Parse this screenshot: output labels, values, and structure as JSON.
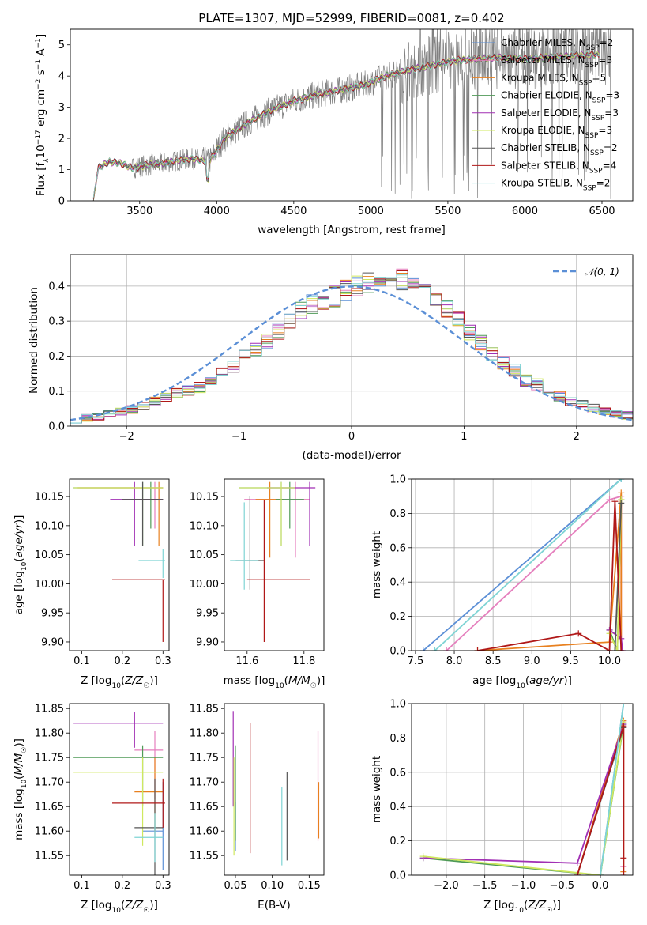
{
  "chart_data": [
    {
      "type": "line",
      "panel": "spectrum",
      "title": "PLATE=1307, MJD=52999, FIBERID=0081, z=0.402",
      "xlabel": "wavelength [Angstrom, rest frame]",
      "ylabel": "Flux [fλ10⁻¹⁷ erg cm⁻² s⁻¹ A⁻¹]",
      "xlim": [
        3050,
        6700
      ],
      "ylim": [
        0,
        5.5
      ],
      "xticks": [
        3500,
        4000,
        4500,
        5000,
        5500,
        6000,
        6500
      ],
      "yticks": [
        0,
        1,
        2,
        3,
        4,
        5
      ],
      "legend_position": "top-right",
      "legend": [
        {
          "label": "Chabrier MILES, N_SSP=2",
          "color": "#5b8fd6"
        },
        {
          "label": "Salpeter MILES, N_SSP=3",
          "color": "#e57fbd"
        },
        {
          "label": "Kroupa MILES, N_SSP=5",
          "color": "#e8801f"
        },
        {
          "label": "Chabrier ELODIE, N_SSP=3",
          "color": "#4f9a57"
        },
        {
          "label": "Salpeter ELODIE, N_SSP=3",
          "color": "#a12fb4"
        },
        {
          "label": "Kroupa ELODIE, N_SSP=3",
          "color": "#cfe85e"
        },
        {
          "label": "Chabrier STELIB, N_SSP=2",
          "color": "#555555"
        },
        {
          "label": "Salpeter STELIB, N_SSP=4",
          "color": "#b01818"
        },
        {
          "label": "Kroupa STELIB, N_SSP=2",
          "color": "#7fd4d4"
        }
      ],
      "data_color": "#808080",
      "continuum": {
        "x": [
          3200,
          3230,
          3300,
          3380,
          3450,
          3550,
          3650,
          3750,
          3850,
          3950,
          4050,
          4200,
          4350,
          4500,
          4650,
          4800,
          4950,
          5100,
          5250,
          5400,
          5550,
          5700,
          5850,
          6000,
          6150,
          6300,
          6500
        ],
        "y": [
          0,
          1.05,
          1.25,
          1.2,
          1.05,
          1.15,
          1.2,
          1.3,
          1.35,
          1.25,
          2.0,
          2.5,
          2.9,
          3.2,
          3.4,
          3.55,
          3.7,
          4.0,
          4.2,
          4.35,
          4.5,
          4.55,
          4.6,
          4.55,
          4.6,
          4.65,
          4.7
        ]
      }
    },
    {
      "type": "histogram",
      "panel": "residuals",
      "xlabel": "(data-model)/error",
      "ylabel": "Normed distribution",
      "xlim": [
        -2.5,
        2.5
      ],
      "ylim": [
        0,
        0.49
      ],
      "xticks": [
        -2,
        -1,
        0,
        1,
        2
      ],
      "yticks": [
        0,
        0.1,
        0.2,
        0.3,
        0.4
      ],
      "grid": true,
      "legend_position": "top-right",
      "legend": [
        {
          "label": "𝒩(0, 1)",
          "color": "#5b8fd6",
          "style": "dashed"
        }
      ],
      "bin_width": 0.1,
      "base_hist": [
        0.02,
        0.022,
        0.028,
        0.033,
        0.04,
        0.047,
        0.058,
        0.07,
        0.083,
        0.093,
        0.1,
        0.11,
        0.128,
        0.15,
        0.17,
        0.2,
        0.22,
        0.24,
        0.27,
        0.3,
        0.33,
        0.35,
        0.36,
        0.37,
        0.39,
        0.4,
        0.41,
        0.4,
        0.42,
        0.42,
        0.4,
        0.38,
        0.35,
        0.33,
        0.3,
        0.27,
        0.24,
        0.21,
        0.18,
        0.16,
        0.13,
        0.12,
        0.1,
        0.085,
        0.07,
        0.06,
        0.05,
        0.04,
        0.035,
        0.03
      ]
    },
    {
      "type": "errorbar",
      "panel": "age_vs_Z",
      "xlabel": "Z [log₁₀(Z/Z☉)]",
      "ylabel": "age  [log₁₀(age/yr)]",
      "xlim": [
        0.07,
        0.315
      ],
      "ylim": [
        9.885,
        10.18
      ],
      "xticks": [
        0.1,
        0.2,
        0.3
      ],
      "yticks": [
        9.9,
        9.95,
        10.0,
        10.05,
        10.1,
        10.15
      ],
      "points": [
        {
          "color": "#5b8fd6",
          "x": 0.25,
          "xerr": [
            0.17,
            0.05
          ],
          "y": 10.165,
          "yerr": [
            0.1,
            0.01
          ]
        },
        {
          "color": "#e57fbd",
          "x": 0.28,
          "xerr": [
            0.05,
            0.02
          ],
          "y": 10.145,
          "yerr": [
            0.05,
            0.03
          ]
        },
        {
          "color": "#e8801f",
          "x": 0.29,
          "xerr": [
            0.2,
            0.01
          ],
          "y": 10.165,
          "yerr": [
            0.1,
            0.01
          ]
        },
        {
          "color": "#4f9a57",
          "x": 0.27,
          "xerr": [
            0.05,
            0.03
          ],
          "y": 10.145,
          "yerr": [
            0.05,
            0.03
          ]
        },
        {
          "color": "#a12fb4",
          "x": 0.23,
          "xerr": [
            0.06,
            0.07
          ],
          "y": 10.145,
          "yerr": [
            0.08,
            0.03
          ]
        },
        {
          "color": "#cfe85e",
          "x": 0.25,
          "xerr": [
            0.17,
            0.05
          ],
          "y": 10.165,
          "yerr": [
            0.1,
            0.01
          ]
        },
        {
          "color": "#555555",
          "x": 0.25,
          "xerr": [
            0.05,
            0.05
          ],
          "y": 10.145,
          "yerr": [
            0.08,
            0.03
          ]
        },
        {
          "color": "#b01818",
          "x": 0.3,
          "xerr": [
            0.125,
            0.005
          ],
          "y": 10.007,
          "yerr": [
            0.107,
            0.0
          ]
        },
        {
          "color": "#7fd4d4",
          "x": 0.3,
          "xerr": [
            0.06,
            0.005
          ],
          "y": 10.04,
          "yerr": [
            0.03,
            0.02
          ]
        }
      ]
    },
    {
      "type": "errorbar",
      "panel": "age_vs_mass",
      "xlabel": "mass [log₁₀(M/M☉)]",
      "xlim": [
        11.52,
        11.87
      ],
      "ylim": [
        9.885,
        10.18
      ],
      "xticks": [
        11.6,
        11.8
      ],
      "yticks": [
        9.9,
        9.95,
        10.0,
        10.05,
        10.1,
        10.15
      ],
      "points": [
        {
          "color": "#5b8fd6",
          "x": 11.72,
          "xerr": [
            0.15,
            0.05
          ],
          "y": 10.165,
          "yerr": [
            0.1,
            0.01
          ]
        },
        {
          "color": "#e57fbd",
          "x": 11.77,
          "xerr": [
            0.18,
            0.05
          ],
          "y": 10.145,
          "yerr": [
            0.1,
            0.03
          ]
        },
        {
          "color": "#e8801f",
          "x": 11.68,
          "xerr": [
            0.05,
            0.05
          ],
          "y": 10.145,
          "yerr": [
            0.1,
            0.03
          ]
        },
        {
          "color": "#4f9a57",
          "x": 11.75,
          "xerr": [
            0.05,
            0.05
          ],
          "y": 10.145,
          "yerr": [
            0.05,
            0.03
          ]
        },
        {
          "color": "#a12fb4",
          "x": 11.82,
          "xerr": [
            0.15,
            0.02
          ],
          "y": 10.165,
          "yerr": [
            0.1,
            0.01
          ]
        },
        {
          "color": "#cfe85e",
          "x": 11.72,
          "xerr": [
            0.15,
            0.05
          ],
          "y": 10.165,
          "yerr": [
            0.1,
            0.01
          ]
        },
        {
          "color": "#555555",
          "x": 11.61,
          "xerr": [
            0.05,
            0.05
          ],
          "y": 10.04,
          "yerr": [
            0.05,
            0.11
          ]
        },
        {
          "color": "#b01818",
          "x": 11.66,
          "xerr": [
            0.06,
            0.16
          ],
          "y": 10.007,
          "yerr": [
            0.107,
            0.137
          ]
        },
        {
          "color": "#7fd4d4",
          "x": 11.59,
          "xerr": [
            0.05,
            0.05
          ],
          "y": 10.04,
          "yerr": [
            0.05,
            0.1
          ]
        }
      ]
    },
    {
      "type": "line",
      "panel": "mass_weight_vs_age",
      "xlabel": "age  [log₁₀(age/yr)]",
      "ylabel": "mass weight",
      "xlim": [
        7.45,
        10.3
      ],
      "ylim": [
        0,
        1.0
      ],
      "xticks": [
        7.5,
        8.0,
        8.5,
        9.0,
        9.5,
        10.0
      ],
      "yticks": [
        0.0,
        0.2,
        0.4,
        0.6,
        0.8,
        1.0
      ],
      "grid": true,
      "series": [
        {
          "color": "#5b8fd6",
          "x": [
            7.6,
            10.15
          ],
          "y": [
            0.0,
            1.0
          ]
        },
        {
          "color": "#e57fbd",
          "x": [
            7.9,
            10.0,
            10.15,
            10.15
          ],
          "y": [
            0.0,
            0.88,
            0.9,
            0.0
          ]
        },
        {
          "color": "#e8801f",
          "x": [
            8.3,
            10.0,
            10.15,
            10.15
          ],
          "y": [
            0.0,
            0.05,
            0.92,
            0.0
          ]
        },
        {
          "color": "#4f9a57",
          "x": [
            10.0,
            10.1,
            10.15
          ],
          "y": [
            0.12,
            0.0,
            0.88
          ]
        },
        {
          "color": "#a12fb4",
          "x": [
            10.0,
            10.15,
            10.17
          ],
          "y": [
            0.12,
            0.07,
            0.0
          ]
        },
        {
          "color": "#cfe85e",
          "x": [
            10.0,
            10.1,
            10.15
          ],
          "y": [
            0.1,
            0.0,
            0.88
          ]
        },
        {
          "color": "#555555",
          "x": [
            10.07,
            10.15
          ],
          "y": [
            0.0,
            0.86
          ]
        },
        {
          "color": "#b01818",
          "x": [
            8.3,
            9.6,
            10.0,
            10.07,
            10.15
          ],
          "y": [
            0.0,
            0.1,
            0.0,
            0.87,
            0.0
          ]
        },
        {
          "color": "#7fd4d4",
          "x": [
            7.75,
            10.15
          ],
          "y": [
            0.0,
            1.0
          ]
        }
      ]
    },
    {
      "type": "errorbar",
      "panel": "mass_vs_Z",
      "xlabel": "Z [log₁₀(Z/Z☉)]",
      "ylabel": "mass [log₁₀(M/M☉)]",
      "xlim": [
        0.07,
        0.315
      ],
      "ylim": [
        11.51,
        11.86
      ],
      "xticks": [
        0.1,
        0.2,
        0.3
      ],
      "yticks": [
        11.55,
        11.6,
        11.65,
        11.7,
        11.75,
        11.8,
        11.85
      ],
      "points": [
        {
          "color": "#5b8fd6",
          "x": 0.3,
          "xerr": [
            0.05,
            0.0
          ],
          "y": 11.6,
          "yerr": [
            0.08,
            0.1
          ]
        },
        {
          "color": "#e57fbd",
          "x": 0.28,
          "xerr": [
            0.05,
            0.02
          ],
          "y": 11.765,
          "yerr": [
            0.1,
            0.04
          ]
        },
        {
          "color": "#e8801f",
          "x": 0.28,
          "xerr": [
            0.05,
            0.02
          ],
          "y": 11.68,
          "yerr": [
            0.08,
            0.07
          ]
        },
        {
          "color": "#4f9a57",
          "x": 0.25,
          "xerr": [
            0.17,
            0.05
          ],
          "y": 11.75,
          "yerr": [
            0.1,
            0.025
          ]
        },
        {
          "color": "#a12fb4",
          "x": 0.23,
          "xerr": [
            0.15,
            0.07
          ],
          "y": 11.82,
          "yerr": [
            0.05,
            0.023
          ]
        },
        {
          "color": "#cfe85e",
          "x": 0.25,
          "xerr": [
            0.17,
            0.05
          ],
          "y": 11.72,
          "yerr": [
            0.15,
            0.03
          ]
        },
        {
          "color": "#555555",
          "x": 0.28,
          "xerr": [
            0.05,
            0.02
          ],
          "y": 11.607,
          "yerr": [
            0.1,
            0.1
          ]
        },
        {
          "color": "#b01818",
          "x": 0.3,
          "xerr": [
            0.125,
            0.005
          ],
          "y": 11.657,
          "yerr": [
            0.05,
            0.05
          ]
        },
        {
          "color": "#7fd4d4",
          "x": 0.28,
          "xerr": [
            0.05,
            0.02
          ],
          "y": 11.587,
          "yerr": [
            0.05,
            0.05
          ]
        }
      ]
    },
    {
      "type": "errorbar",
      "panel": "mass_vs_EBV",
      "xlabel": "E(B-V)",
      "xlim": [
        0.035,
        0.17
      ],
      "ylim": [
        11.51,
        11.86
      ],
      "xticks": [
        0.05,
        0.1,
        0.15
      ],
      "yticks": [
        11.55,
        11.6,
        11.65,
        11.7,
        11.75,
        11.8,
        11.85
      ],
      "points": [
        {
          "color": "#5b8fd6",
          "x": 0.05,
          "y": 11.6,
          "yerr": [
            0.04,
            0.06
          ]
        },
        {
          "color": "#e57fbd",
          "x": 0.162,
          "y": 11.7,
          "yerr": [
            0.12,
            0.105
          ]
        },
        {
          "color": "#e8801f",
          "x": 0.163,
          "y": 11.65,
          "yerr": [
            0.065,
            0.05
          ]
        },
        {
          "color": "#4f9a57",
          "x": 0.05,
          "y": 11.68,
          "yerr": [
            0.1,
            0.095
          ]
        },
        {
          "color": "#a12fb4",
          "x": 0.047,
          "y": 11.75,
          "yerr": [
            0.1,
            0.095
          ]
        },
        {
          "color": "#cfe85e",
          "x": 0.048,
          "y": 11.65,
          "yerr": [
            0.1,
            0.1
          ]
        },
        {
          "color": "#555555",
          "x": 0.12,
          "y": 11.63,
          "yerr": [
            0.09,
            0.09
          ]
        },
        {
          "color": "#b01818",
          "x": 0.07,
          "y": 11.69,
          "yerr": [
            0.135,
            0.13
          ]
        },
        {
          "color": "#7fd4d4",
          "x": 0.113,
          "y": 11.61,
          "yerr": [
            0.08,
            0.08
          ]
        }
      ]
    },
    {
      "type": "line",
      "panel": "mass_weight_vs_Z",
      "xlabel": "Z [log₁₀(Z/Z☉)]",
      "ylabel": "mass weight",
      "xlim": [
        -2.45,
        0.42
      ],
      "ylim": [
        0,
        1.0
      ],
      "xticks": [
        -2.0,
        -1.5,
        -1.0,
        -0.5,
        0.0
      ],
      "yticks": [
        0.0,
        0.2,
        0.4,
        0.6,
        0.8,
        1.0
      ],
      "grid": true,
      "series": [
        {
          "color": "#5b8fd6",
          "x": [
            0.0,
            0.3
          ],
          "y": [
            0.0,
            1.0
          ]
        },
        {
          "color": "#e57fbd",
          "x": [
            -0.3,
            0.3,
            0.3
          ],
          "y": [
            0.0,
            0.9,
            0.05
          ]
        },
        {
          "color": "#e8801f",
          "x": [
            -0.3,
            0.3,
            0.3
          ],
          "y": [
            0.0,
            0.9,
            0.02
          ]
        },
        {
          "color": "#4f9a57",
          "x": [
            -2.3,
            0.0,
            0.3
          ],
          "y": [
            0.1,
            0.0,
            0.88
          ]
        },
        {
          "color": "#a12fb4",
          "x": [
            -2.3,
            -0.3,
            0.3
          ],
          "y": [
            0.1,
            0.07,
            0.88
          ]
        },
        {
          "color": "#cfe85e",
          "x": [
            -2.3,
            0.0,
            0.3
          ],
          "y": [
            0.11,
            0.0,
            0.89
          ]
        },
        {
          "color": "#555555",
          "x": [
            -0.3,
            0.3
          ],
          "y": [
            0.0,
            0.86
          ]
        },
        {
          "color": "#b01818",
          "x": [
            -0.3,
            0.3,
            0.3,
            0.3
          ],
          "y": [
            0.0,
            0.87,
            0.1,
            0.0
          ]
        },
        {
          "color": "#7fd4d4",
          "x": [
            0.0,
            0.3
          ],
          "y": [
            0.0,
            1.0
          ]
        }
      ]
    }
  ]
}
